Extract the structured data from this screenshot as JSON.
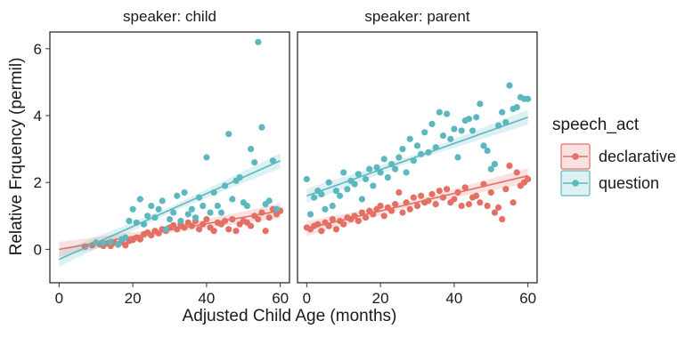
{
  "chart_data": {
    "type": "scatter",
    "xlabel": "Adjusted Child Age (months)",
    "ylabel": "Relative Frquency (permil)",
    "xlim": [
      -2.5,
      62.5
    ],
    "ylim": [
      -1,
      6.5
    ],
    "x_ticks": [
      "0",
      "20",
      "40",
      "60"
    ],
    "y_ticks": [
      "0",
      "2",
      "4",
      "6"
    ],
    "grid": false,
    "legend": {
      "title": "speech_act",
      "placement": "right",
      "entries": [
        "declarative",
        "question"
      ]
    },
    "colors": {
      "declarative": "#E46F65",
      "question": "#5CB7BE"
    },
    "panels": [
      {
        "strip": "speaker: child",
        "series": [
          {
            "name": "declarative",
            "fit": {
              "x0": 0,
              "y0": 0.0,
              "x1": 60,
              "y1": 1.15
            },
            "points": [
              [
                7,
                0.08
              ],
              [
                9,
                0.12
              ],
              [
                11,
                0.15
              ],
              [
                12,
                0.1
              ],
              [
                13,
                0.18
              ],
              [
                14,
                0.1
              ],
              [
                15,
                0.2
              ],
              [
                16,
                0.14
              ],
              [
                17,
                0.22
              ],
              [
                18,
                0.12
              ],
              [
                19,
                0.25
              ],
              [
                20,
                0.28
              ],
              [
                21,
                0.35
              ],
              [
                22,
                0.3
              ],
              [
                23,
                0.45
              ],
              [
                24,
                0.5
              ],
              [
                25,
                0.42
              ],
              [
                26,
                0.55
              ],
              [
                27,
                0.48
              ],
              [
                28,
                0.6
              ],
              [
                29,
                0.55
              ],
              [
                30,
                0.65
              ],
              [
                31,
                0.72
              ],
              [
                32,
                0.6
              ],
              [
                33,
                0.75
              ],
              [
                34,
                0.65
              ],
              [
                35,
                0.8
              ],
              [
                36,
                0.7
              ],
              [
                37,
                0.85
              ],
              [
                38,
                0.6
              ],
              [
                39,
                0.75
              ],
              [
                40,
                0.9
              ],
              [
                41,
                0.65
              ],
              [
                42,
                0.55
              ],
              [
                43,
                0.8
              ],
              [
                44,
                0.75
              ],
              [
                45,
                0.85
              ],
              [
                46,
                0.6
              ],
              [
                47,
                0.9
              ],
              [
                48,
                0.55
              ],
              [
                49,
                0.75
              ],
              [
                50,
                0.85
              ],
              [
                51,
                0.8
              ],
              [
                52,
                0.7
              ],
              [
                53,
                1.0
              ],
              [
                54,
                0.9
              ],
              [
                55,
                1.1
              ],
              [
                56,
                0.55
              ],
              [
                57,
                0.95
              ],
              [
                58,
                1.2
              ],
              [
                59,
                1.05
              ],
              [
                60,
                1.15
              ]
            ]
          },
          {
            "name": "question",
            "fit": {
              "x0": 0,
              "y0": -0.3,
              "x1": 60,
              "y1": 2.65
            },
            "points": [
              [
                10,
                0.2
              ],
              [
                12,
                0.18
              ],
              [
                14,
                0.22
              ],
              [
                16,
                0.15
              ],
              [
                17,
                0.3
              ],
              [
                18,
                0.35
              ],
              [
                19,
                0.85
              ],
              [
                20,
                1.2
              ],
              [
                21,
                0.8
              ],
              [
                22,
                1.5
              ],
              [
                23,
                0.75
              ],
              [
                24,
                1.0
              ],
              [
                25,
                1.3
              ],
              [
                26,
                0.95
              ],
              [
                27,
                1.2
              ],
              [
                28,
                1.45
              ],
              [
                29,
                0.6
              ],
              [
                30,
                0.9
              ],
              [
                31,
                1.1
              ],
              [
                32,
                1.6
              ],
              [
                33,
                0.85
              ],
              [
                34,
                1.7
              ],
              [
                35,
                1.05
              ],
              [
                36,
                1.2
              ],
              [
                37,
                0.95
              ],
              [
                38,
                1.55
              ],
              [
                39,
                1.3
              ],
              [
                40,
                2.75
              ],
              [
                41,
                1.1
              ],
              [
                42,
                1.7
              ],
              [
                43,
                1.3
              ],
              [
                44,
                1.1
              ],
              [
                45,
                1.9
              ],
              [
                46,
                3.45
              ],
              [
                47,
                1.5
              ],
              [
                48,
                2.05
              ],
              [
                49,
                2.15
              ],
              [
                50,
                1.4
              ],
              [
                51,
                1.3
              ],
              [
                52,
                3.0
              ],
              [
                53,
                2.6
              ],
              [
                54,
                6.2
              ],
              [
                55,
                3.65
              ],
              [
                56,
                1.35
              ],
              [
                57,
                1.45
              ],
              [
                58,
                2.65
              ],
              [
                59,
                1.2
              ]
            ]
          }
        ]
      },
      {
        "strip": "speaker: parent",
        "series": [
          {
            "name": "declarative",
            "fit": {
              "x0": 0,
              "y0": 0.62,
              "x1": 60,
              "y1": 2.2
            },
            "points": [
              [
                0,
                0.65
              ],
              [
                1,
                0.6
              ],
              [
                2,
                0.7
              ],
              [
                3,
                0.75
              ],
              [
                4,
                0.55
              ],
              [
                5,
                0.8
              ],
              [
                6,
                0.7
              ],
              [
                7,
                0.9
              ],
              [
                8,
                0.6
              ],
              [
                9,
                0.85
              ],
              [
                10,
                0.75
              ],
              [
                11,
                0.95
              ],
              [
                12,
                0.9
              ],
              [
                13,
                1.0
              ],
              [
                14,
                0.85
              ],
              [
                15,
                1.1
              ],
              [
                16,
                0.95
              ],
              [
                17,
                1.15
              ],
              [
                18,
                1.05
              ],
              [
                19,
                1.2
              ],
              [
                20,
                1.3
              ],
              [
                21,
                1.0
              ],
              [
                22,
                1.25
              ],
              [
                23,
                1.15
              ],
              [
                24,
                1.35
              ],
              [
                25,
                1.7
              ],
              [
                26,
                1.1
              ],
              [
                27,
                1.4
              ],
              [
                28,
                1.2
              ],
              [
                29,
                1.55
              ],
              [
                30,
                1.3
              ],
              [
                31,
                1.6
              ],
              [
                32,
                1.4
              ],
              [
                33,
                1.45
              ],
              [
                34,
                1.65
              ],
              [
                35,
                1.35
              ],
              [
                36,
                1.75
              ],
              [
                37,
                1.55
              ],
              [
                38,
                1.8
              ],
              [
                39,
                1.4
              ],
              [
                40,
                1.5
              ],
              [
                41,
                1.7
              ],
              [
                42,
                1.3
              ],
              [
                43,
                1.85
              ],
              [
                44,
                1.35
              ],
              [
                45,
                1.55
              ],
              [
                46,
                1.6
              ],
              [
                47,
                1.4
              ],
              [
                48,
                1.95
              ],
              [
                49,
                1.3
              ],
              [
                50,
                1.7
              ],
              [
                51,
                1.1
              ],
              [
                52,
                1.25
              ],
              [
                53,
                0.9
              ],
              [
                54,
                1.8
              ],
              [
                55,
                2.5
              ],
              [
                56,
                1.4
              ],
              [
                57,
                2.3
              ],
              [
                58,
                1.9
              ],
              [
                59,
                2.0
              ],
              [
                60,
                2.1
              ]
            ]
          },
          {
            "name": "question",
            "fit": {
              "x0": 0,
              "y0": 1.6,
              "x1": 60,
              "y1": 3.95
            },
            "points": [
              [
                0,
                2.1
              ],
              [
                1,
                1.05
              ],
              [
                2,
                1.55
              ],
              [
                3,
                1.75
              ],
              [
                4,
                1.65
              ],
              [
                5,
                1.2
              ],
              [
                6,
                2.0
              ],
              [
                7,
                1.3
              ],
              [
                8,
                1.75
              ],
              [
                9,
                1.6
              ],
              [
                10,
                2.3
              ],
              [
                11,
                1.8
              ],
              [
                12,
                2.05
              ],
              [
                13,
                1.95
              ],
              [
                14,
                2.25
              ],
              [
                15,
                1.5
              ],
              [
                16,
                2.1
              ],
              [
                17,
                2.4
              ],
              [
                18,
                1.9
              ],
              [
                19,
                2.45
              ],
              [
                20,
                2.3
              ],
              [
                21,
                2.7
              ],
              [
                22,
                2.15
              ],
              [
                23,
                2.55
              ],
              [
                24,
                2.4
              ],
              [
                25,
                2.75
              ],
              [
                26,
                3.0
              ],
              [
                27,
                2.3
              ],
              [
                28,
                3.3
              ],
              [
                29,
                2.65
              ],
              [
                30,
                3.1
              ],
              [
                31,
                2.85
              ],
              [
                32,
                3.5
              ],
              [
                33,
                2.9
              ],
              [
                34,
                3.75
              ],
              [
                35,
                3.05
              ],
              [
                36,
                4.1
              ],
              [
                37,
                3.4
              ],
              [
                38,
                4.05
              ],
              [
                39,
                3.3
              ],
              [
                40,
                3.6
              ],
              [
                41,
                2.75
              ],
              [
                42,
                3.55
              ],
              [
                43,
                3.85
              ],
              [
                44,
                3.9
              ],
              [
                45,
                3.55
              ],
              [
                46,
                3.95
              ],
              [
                47,
                4.35
              ],
              [
                48,
                3.1
              ],
              [
                49,
                2.95
              ],
              [
                50,
                2.4
              ],
              [
                51,
                2.55
              ],
              [
                52,
                3.7
              ],
              [
                53,
                4.1
              ],
              [
                54,
                3.8
              ],
              [
                55,
                4.9
              ],
              [
                56,
                4.2
              ],
              [
                57,
                4.25
              ],
              [
                58,
                4.55
              ],
              [
                59,
                4.5
              ],
              [
                60,
                4.5
              ]
            ]
          }
        ]
      }
    ]
  }
}
